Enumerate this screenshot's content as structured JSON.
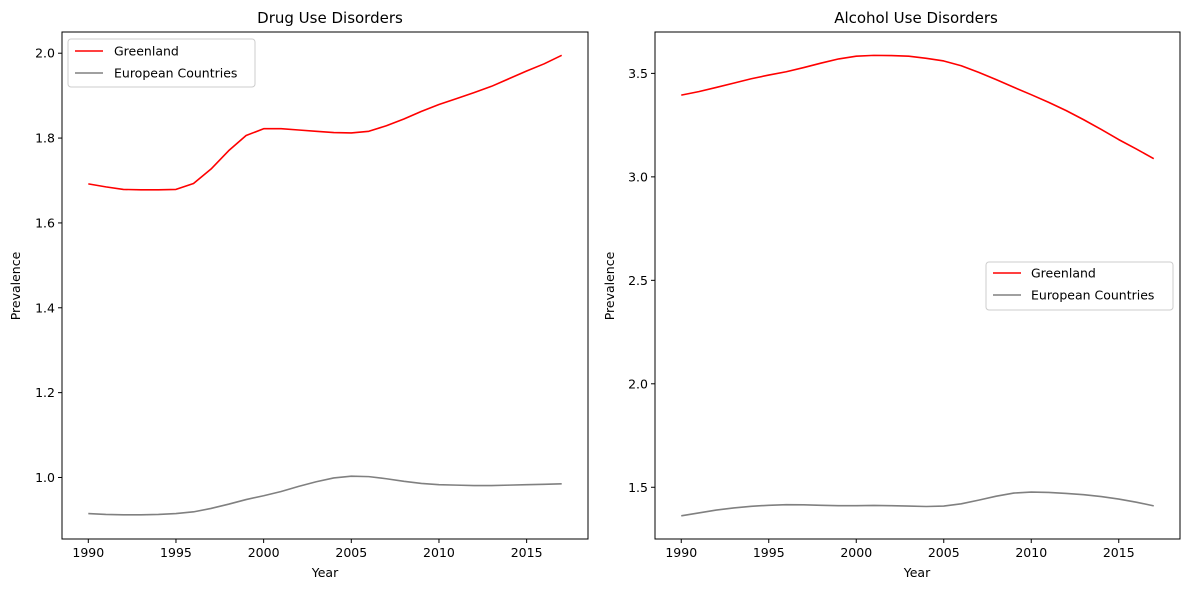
{
  "chart_data": [
    {
      "type": "line",
      "title": "Drug Use Disorders",
      "xlabel": "Year",
      "ylabel": "Prevalence",
      "xlim": [
        1988.5,
        2018.5
      ],
      "ylim": [
        0.855,
        2.05
      ],
      "xticks": [
        1990,
        1995,
        2000,
        2005,
        2010,
        2015
      ],
      "xtick_labels": [
        "1990",
        "1995",
        "2000",
        "2005",
        "2010",
        "2015"
      ],
      "yticks": [
        1.0,
        1.2,
        1.4,
        1.6,
        1.8,
        2.0
      ],
      "ytick_labels": [
        "1.0",
        "1.2",
        "1.4",
        "1.6",
        "1.8",
        "2.0"
      ],
      "legend": "top-left",
      "grid": false,
      "x": [
        1990,
        1991,
        1992,
        1993,
        1994,
        1995,
        1996,
        1997,
        1998,
        1999,
        2000,
        2001,
        2002,
        2003,
        2004,
        2005,
        2006,
        2007,
        2008,
        2009,
        2010,
        2011,
        2012,
        2013,
        2014,
        2015,
        2016,
        2017
      ],
      "series": [
        {
          "name": "Greenland",
          "color": "#ff0000",
          "values": [
            1.692,
            1.685,
            1.679,
            1.678,
            1.678,
            1.679,
            1.693,
            1.727,
            1.77,
            1.806,
            1.822,
            1.822,
            1.819,
            1.816,
            1.813,
            1.812,
            1.816,
            1.829,
            1.845,
            1.863,
            1.879,
            1.893,
            1.907,
            1.922,
            1.94,
            1.958,
            1.975,
            1.995
          ]
        },
        {
          "name": "European Countries",
          "color": "#808080",
          "values": [
            0.915,
            0.913,
            0.912,
            0.912,
            0.913,
            0.915,
            0.919,
            0.927,
            0.937,
            0.948,
            0.957,
            0.967,
            0.979,
            0.99,
            0.999,
            1.003,
            1.002,
            0.997,
            0.991,
            0.986,
            0.983,
            0.982,
            0.981,
            0.981,
            0.982,
            0.983,
            0.984,
            0.985
          ]
        }
      ]
    },
    {
      "type": "line",
      "title": "Alcohol Use Disorders",
      "xlabel": "Year",
      "ylabel": "Prevalence",
      "xlim": [
        1988.5,
        2018.5
      ],
      "ylim": [
        1.25,
        3.7
      ],
      "xticks": [
        1990,
        1995,
        2000,
        2005,
        2010,
        2015
      ],
      "xtick_labels": [
        "1990",
        "1995",
        "2000",
        "2005",
        "2010",
        "2015"
      ],
      "yticks": [
        1.5,
        2.0,
        2.5,
        3.0,
        3.5
      ],
      "ytick_labels": [
        "1.5",
        "2.0",
        "2.5",
        "3.0",
        "3.5"
      ],
      "legend": "center-right",
      "grid": false,
      "x": [
        1990,
        1991,
        1992,
        1993,
        1994,
        1995,
        1996,
        1997,
        1998,
        1999,
        2000,
        2001,
        2002,
        2003,
        2004,
        2005,
        2006,
        2007,
        2008,
        2009,
        2010,
        2011,
        2012,
        2013,
        2014,
        2015,
        2016,
        2017
      ],
      "series": [
        {
          "name": "Greenland",
          "color": "#ff0000",
          "values": [
            3.395,
            3.412,
            3.432,
            3.453,
            3.474,
            3.492,
            3.508,
            3.528,
            3.55,
            3.57,
            3.583,
            3.587,
            3.586,
            3.583,
            3.573,
            3.56,
            3.537,
            3.505,
            3.47,
            3.433,
            3.397,
            3.36,
            3.32,
            3.276,
            3.229,
            3.18,
            3.135,
            3.088
          ]
        },
        {
          "name": "European Countries",
          "color": "#808080",
          "values": [
            1.362,
            1.376,
            1.39,
            1.4,
            1.408,
            1.413,
            1.416,
            1.415,
            1.413,
            1.411,
            1.411,
            1.412,
            1.411,
            1.409,
            1.407,
            1.409,
            1.42,
            1.438,
            1.457,
            1.472,
            1.477,
            1.475,
            1.47,
            1.464,
            1.455,
            1.443,
            1.428,
            1.41
          ]
        }
      ]
    }
  ]
}
